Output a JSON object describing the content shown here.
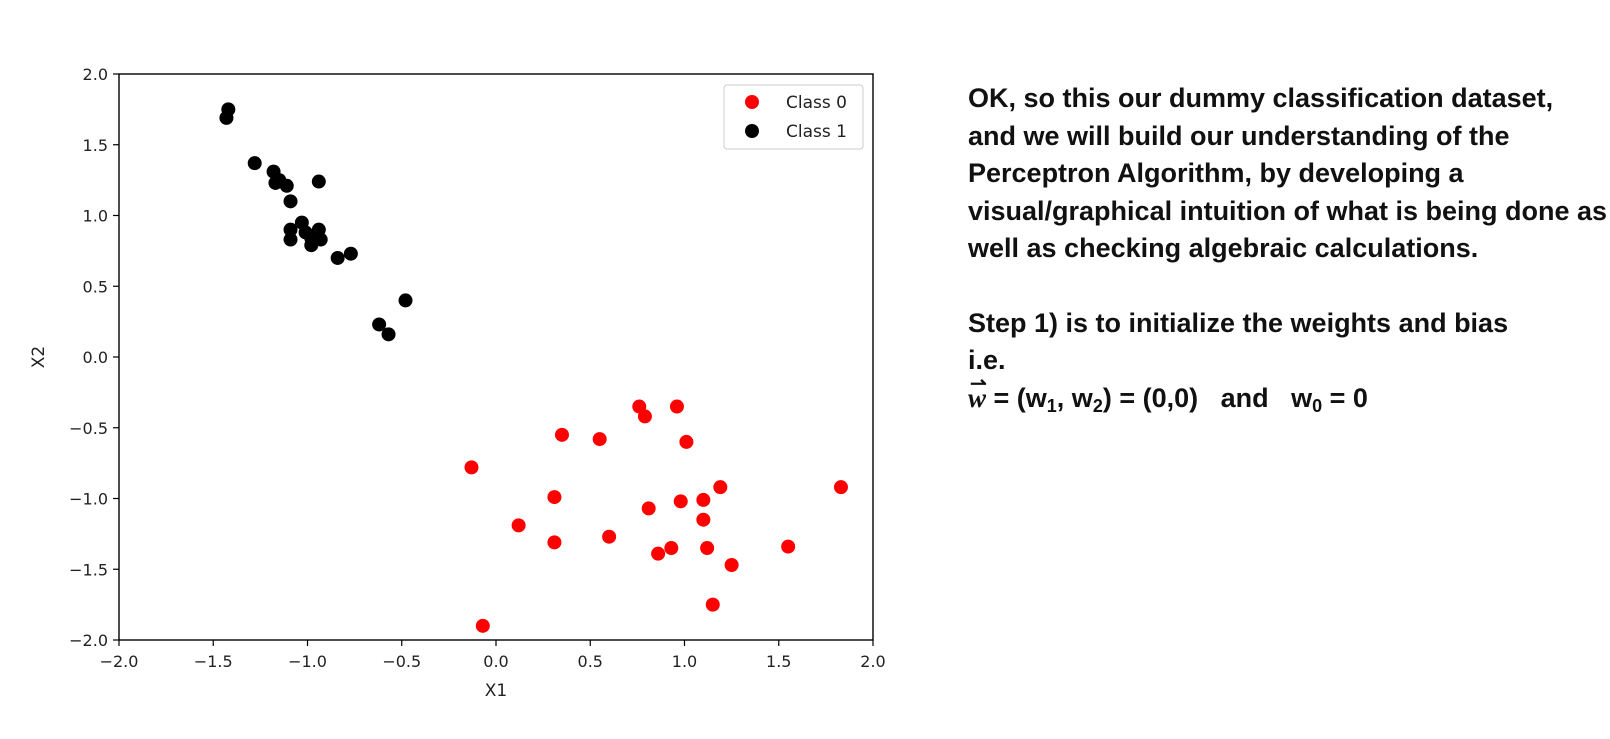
{
  "chart_data": {
    "type": "scatter",
    "title": "",
    "xlabel": "X1",
    "ylabel": "X2",
    "xlim": [
      -2.0,
      2.0
    ],
    "ylim": [
      -2.0,
      2.0
    ],
    "xticks": [
      "−2.0",
      "−1.5",
      "−1.0",
      "−0.5",
      "0.0",
      "0.5",
      "1.0",
      "1.5",
      "2.0"
    ],
    "yticks": [
      "2.0",
      "1.5",
      "1.0",
      "0.5",
      "0.0",
      "−0.5",
      "−1.0",
      "−1.5",
      "−2.0"
    ],
    "grid": false,
    "legend_position": "top-right",
    "series": [
      {
        "name": "Class 0",
        "color": "#ff0000",
        "points": [
          [
            -0.13,
            -0.78
          ],
          [
            -0.07,
            -1.9
          ],
          [
            0.12,
            -1.19
          ],
          [
            0.31,
            -0.99
          ],
          [
            0.31,
            -1.31
          ],
          [
            0.35,
            -0.55
          ],
          [
            0.55,
            -0.58
          ],
          [
            0.6,
            -1.27
          ],
          [
            0.76,
            -0.35
          ],
          [
            0.79,
            -0.42
          ],
          [
            0.81,
            -1.07
          ],
          [
            0.86,
            -1.39
          ],
          [
            0.93,
            -1.35
          ],
          [
            0.96,
            -0.35
          ],
          [
            0.98,
            -1.02
          ],
          [
            1.01,
            -0.6
          ],
          [
            1.1,
            -1.01
          ],
          [
            1.1,
            -1.15
          ],
          [
            1.12,
            -1.35
          ],
          [
            1.15,
            -1.75
          ],
          [
            1.19,
            -0.92
          ],
          [
            1.25,
            -1.47
          ],
          [
            1.55,
            -1.34
          ],
          [
            1.83,
            -0.92
          ]
        ]
      },
      {
        "name": "Class 1",
        "color": "#000000",
        "points": [
          [
            -1.42,
            1.75
          ],
          [
            -1.43,
            1.69
          ],
          [
            -1.28,
            1.37
          ],
          [
            -1.18,
            1.31
          ],
          [
            -1.17,
            1.23
          ],
          [
            -1.15,
            1.25
          ],
          [
            -1.11,
            1.21
          ],
          [
            -1.09,
            1.1
          ],
          [
            -0.94,
            1.24
          ],
          [
            -1.09,
            0.9
          ],
          [
            -1.09,
            0.83
          ],
          [
            -1.03,
            0.95
          ],
          [
            -1.01,
            0.88
          ],
          [
            -0.98,
            0.84
          ],
          [
            -0.98,
            0.79
          ],
          [
            -0.94,
            0.9
          ],
          [
            -0.93,
            0.83
          ],
          [
            -0.84,
            0.7
          ],
          [
            -0.77,
            0.73
          ],
          [
            -0.62,
            0.23
          ],
          [
            -0.57,
            0.16
          ],
          [
            -0.48,
            0.4
          ]
        ]
      }
    ]
  },
  "text": {
    "intro": "OK, so this our dummy classification dataset, and we will build our understanding of the Perceptron Algorithm, by developing a visual/graphical intuition of what is being done as well as checking algebraic calculations.",
    "step1": "Step 1) is to initialize the weights and bias",
    "ie": "i.e.",
    "eq_w_symbol": "w",
    "eq_w_arrow": "⇀",
    "eq_part1": " = (w",
    "eq_sub1": "1",
    "eq_part2": ", w",
    "eq_sub2": "2",
    "eq_part3": ") = (0,0)   and   w",
    "eq_sub0": "0",
    "eq_part4": " = 0"
  }
}
